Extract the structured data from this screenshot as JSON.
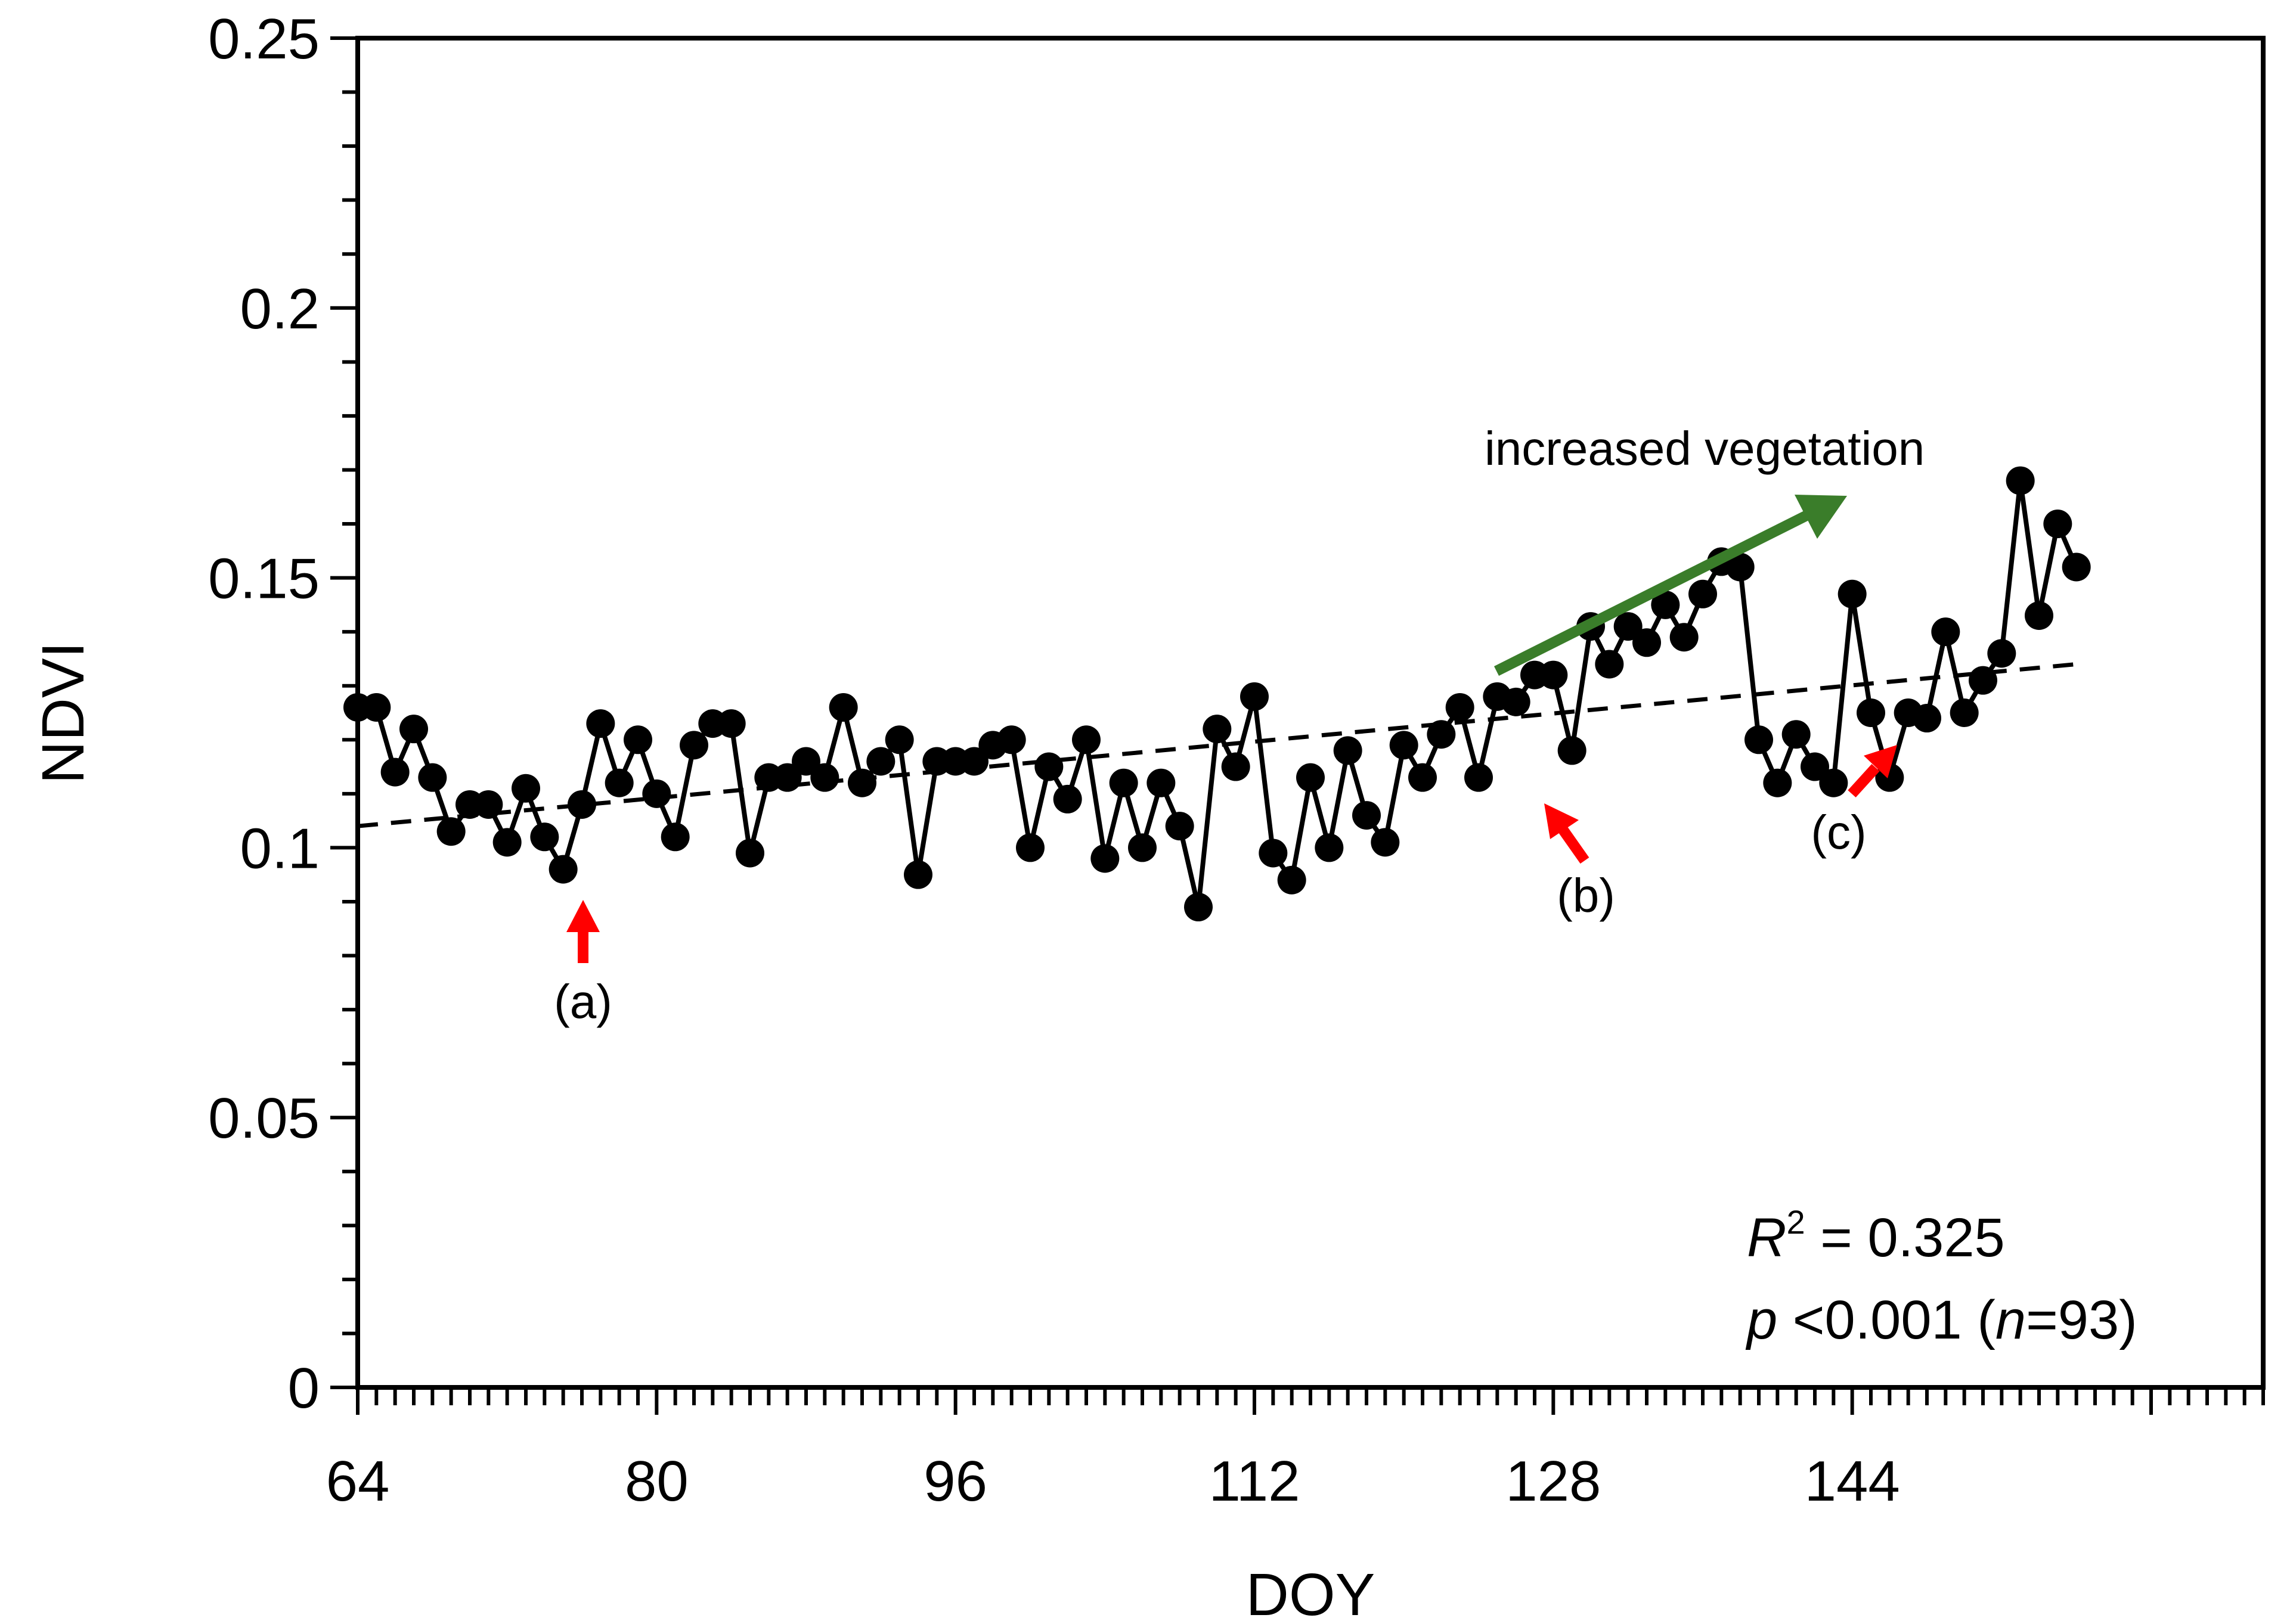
{
  "chart_data": {
    "type": "line",
    "title": "",
    "xlabel": "DOY",
    "ylabel": "NDVI",
    "xlim": [
      64,
      166
    ],
    "ylim": [
      0,
      0.25
    ],
    "xticks": [
      64,
      80,
      96,
      112,
      128,
      144
    ],
    "xtick_labels": [
      "64",
      "80",
      "96",
      "112",
      "128",
      "144"
    ],
    "yticks": [
      0,
      0.05,
      0.1,
      0.15,
      0.2,
      0.25
    ],
    "ytick_labels": [
      "0",
      "0.05",
      "0.1",
      "0.15",
      "0.2",
      "0.25"
    ],
    "series": [
      {
        "name": "NDVI",
        "style": "line-with-markers",
        "color": "#000000",
        "x": [
          64,
          65,
          66,
          67,
          68,
          69,
          70,
          71,
          72,
          73,
          74,
          75,
          76,
          77,
          78,
          79,
          80,
          81,
          82,
          83,
          84,
          85,
          86,
          87,
          88,
          89,
          90,
          91,
          92,
          93,
          94,
          95,
          96,
          97,
          98,
          99,
          100,
          101,
          102,
          103,
          104,
          105,
          106,
          107,
          108,
          109,
          110,
          111,
          112,
          113,
          114,
          115,
          116,
          117,
          118,
          119,
          120,
          121,
          122,
          123,
          124,
          125,
          126,
          127,
          128,
          129,
          130,
          131,
          132,
          133,
          134,
          135,
          136,
          137,
          138,
          139,
          140,
          141,
          142,
          143,
          144,
          145,
          146,
          147,
          148,
          149,
          150,
          151,
          152,
          153,
          154,
          155,
          156
        ],
        "values": [
          0.126,
          0.126,
          0.114,
          0.122,
          0.113,
          0.103,
          0.108,
          0.108,
          0.101,
          0.111,
          0.102,
          0.096,
          0.108,
          0.123,
          0.112,
          0.12,
          0.11,
          0.102,
          0.119,
          0.123,
          0.123,
          0.099,
          0.113,
          0.113,
          0.116,
          0.113,
          0.126,
          0.112,
          0.116,
          0.12,
          0.095,
          0.116,
          0.116,
          0.116,
          0.119,
          0.12,
          0.1,
          0.115,
          0.109,
          0.12,
          0.098,
          0.112,
          0.1,
          0.112,
          0.104,
          0.089,
          0.122,
          0.115,
          0.128,
          0.099,
          0.094,
          0.113,
          0.1,
          0.118,
          0.106,
          0.101,
          0.119,
          0.113,
          0.121,
          0.126,
          0.113,
          0.128,
          0.127,
          0.132,
          0.132,
          0.118,
          0.141,
          0.134,
          0.141,
          0.138,
          0.145,
          0.139,
          0.147,
          0.153,
          0.152,
          0.12,
          0.112,
          0.121,
          0.115,
          0.112,
          0.147,
          0.125,
          0.113,
          0.125,
          0.124,
          0.14,
          0.125,
          0.131,
          0.136,
          0.168,
          0.143,
          0.16,
          0.152
        ]
      },
      {
        "name": "linear trend",
        "style": "dashed",
        "color": "#000000",
        "x": [
          64,
          156
        ],
        "values": [
          0.104,
          0.134
        ]
      }
    ],
    "annotations": [
      {
        "text": "(a)",
        "x": 75,
        "y": 0.096,
        "arrow_color": "#ff0000",
        "direction": "up"
      },
      {
        "text": "(b)",
        "x": 121,
        "y": 0.113,
        "arrow_color": "#ff0000",
        "direction": "up-left"
      },
      {
        "text": "(c)",
        "x": 139,
        "y": 0.12,
        "arrow_color": "#ff0000",
        "direction": "up-right"
      },
      {
        "text": "increased vegetation",
        "arrow_color": "#3a7d2a",
        "direction": "up-right"
      }
    ],
    "stats": {
      "r2_symbol": "R",
      "r2_sup": "2",
      "r2_value": " = 0.325",
      "p_symbol": "p",
      "p_text": " <0.001 (",
      "n_symbol": "n",
      "n_text": "=93)"
    }
  }
}
